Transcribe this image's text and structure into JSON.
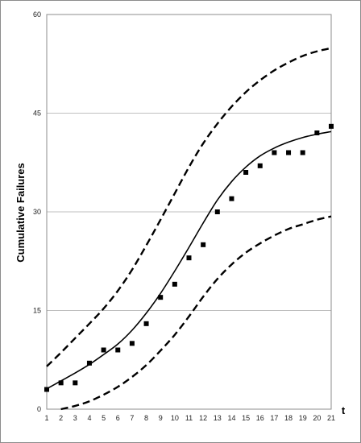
{
  "chart_data": {
    "type": "scatter",
    "title": "",
    "xlabel": "t",
    "ylabel": "Cumulative Failures",
    "xlim": [
      1,
      21
    ],
    "ylim": [
      0,
      60
    ],
    "x_ticks": [
      1,
      2,
      3,
      4,
      5,
      6,
      7,
      8,
      9,
      10,
      11,
      12,
      13,
      14,
      15,
      16,
      17,
      18,
      19,
      20,
      21
    ],
    "y_ticks": [
      0,
      15,
      30,
      45,
      60
    ],
    "grid": "horizontal",
    "legend": "none",
    "colors": {
      "points": "#000000",
      "fit": "#000000",
      "bounds": "#000000",
      "grid": "#bfbfbf",
      "plot_border": "#8c8c8c"
    },
    "series": [
      {
        "style": "markers",
        "x": [
          1,
          2,
          3,
          4,
          5,
          6,
          7,
          8,
          9,
          10,
          11,
          12,
          13,
          14,
          15,
          16,
          17,
          18,
          19,
          20,
          21
        ],
        "y": [
          3,
          4,
          4,
          7,
          9,
          9,
          10,
          13,
          17,
          19,
          23,
          25,
          30,
          32,
          36,
          37,
          39,
          39,
          39,
          42,
          43
        ]
      },
      {
        "style": "solid-line",
        "x": [
          1,
          2,
          3,
          4,
          5,
          6,
          7,
          8,
          9,
          10,
          11,
          12,
          13,
          14,
          15,
          16,
          17,
          18,
          19,
          20,
          21
        ],
        "y": [
          3.1,
          4.3,
          5.5,
          6.8,
          8.3,
          9.9,
          12.0,
          14.6,
          17.6,
          21.0,
          24.6,
          28.3,
          31.8,
          34.6,
          36.8,
          38.5,
          39.7,
          40.6,
          41.3,
          41.8,
          42.2
        ]
      },
      {
        "style": "dashed-line",
        "x": [
          1,
          2,
          3,
          4,
          5,
          6,
          7,
          8,
          9,
          10,
          11,
          12,
          13,
          14,
          15,
          16,
          17,
          18,
          19,
          20,
          21
        ],
        "y": [
          6.5,
          8.6,
          10.8,
          13.0,
          15.3,
          18.0,
          21.2,
          24.9,
          28.8,
          32.8,
          36.8,
          40.4,
          43.4,
          46.0,
          48.2,
          50.0,
          51.5,
          52.7,
          53.7,
          54.4,
          54.9
        ]
      },
      {
        "style": "dashed-line",
        "x": [
          2,
          3,
          4,
          5,
          6,
          7,
          8,
          9,
          10,
          11,
          12,
          13,
          14,
          15,
          16,
          17,
          18,
          19,
          20,
          21
        ],
        "y": [
          0.0,
          0.5,
          1.2,
          2.2,
          3.4,
          4.9,
          6.7,
          8.9,
          11.3,
          14.1,
          17.1,
          19.8,
          22.0,
          23.8,
          25.2,
          26.4,
          27.4,
          28.1,
          28.8,
          29.3
        ]
      }
    ]
  }
}
